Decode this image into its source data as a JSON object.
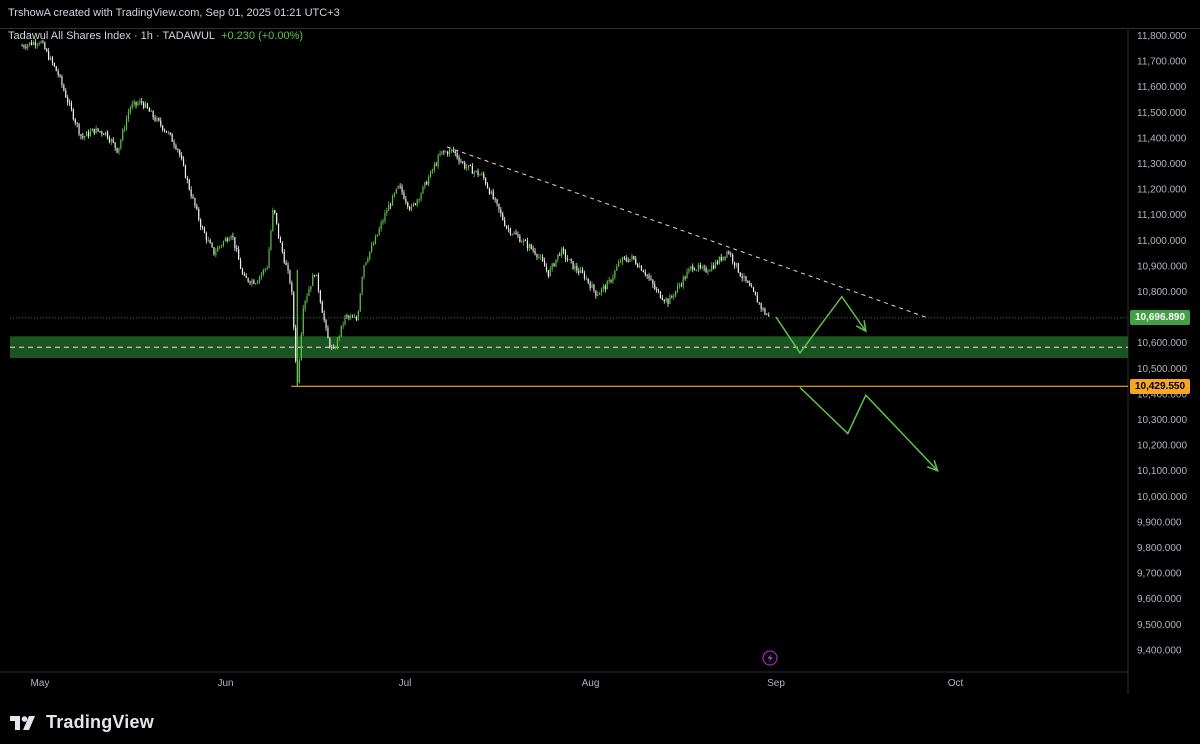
{
  "header": {
    "credit": "TrshowA created with TradingView.com, Sep 01, 2025 01:21 UTC+3"
  },
  "legend": {
    "symbol": "Tadawul All Shares Index · 1h · TADAWUL",
    "change": "+0.230 (+0.00%)",
    "change_color": "#5fc24a"
  },
  "footer": {
    "brand": "TradingView"
  },
  "colors": {
    "up": "#5fc24a",
    "down": "#f0f0f0",
    "zone": "#1e5c25",
    "support_line": "#f5a623",
    "trendline": "#d8d8d8",
    "last_price": "#43a047"
  },
  "chart_data": {
    "type": "candlestick",
    "timeframe": "1h",
    "symbol": "Tadawul All Shares Index",
    "exchange": "TADAWUL",
    "x_ticks": [
      "May",
      "Jun",
      "Jul",
      "Aug",
      "Sep",
      "Oct"
    ],
    "y_ticks": [
      "11,800.000",
      "11,700.000",
      "11,600.000",
      "11,500.000",
      "11,400.000",
      "11,300.000",
      "11,200.000",
      "11,100.000",
      "11,000.000",
      "10,900.000",
      "10,800.000",
      "10,700.000",
      "10,600.000",
      "10,500.000",
      "10,400.000",
      "10,300.000",
      "10,200.000",
      "10,100.000",
      "10,000.000",
      "9,900.000",
      "9,800.000",
      "9,700.000",
      "9,600.000",
      "9,500.000",
      "9,400.000"
    ],
    "y_tick_values": [
      11800,
      11700,
      11600,
      11500,
      11400,
      11300,
      11200,
      11100,
      11000,
      10900,
      10800,
      10700,
      10600,
      10500,
      10400,
      10300,
      10200,
      10100,
      10000,
      9900,
      9800,
      9700,
      9600,
      9500,
      9400
    ],
    "ylim": [
      9370,
      11840
    ],
    "price_path": [
      {
        "date": "2025-04-28",
        "close": 11760
      },
      {
        "date": "2025-05-01",
        "close": 11780
      },
      {
        "date": "2025-05-04",
        "close": 11650
      },
      {
        "date": "2025-05-06",
        "close": 11520
      },
      {
        "date": "2025-05-08",
        "close": 11400
      },
      {
        "date": "2025-05-10",
        "close": 11430
      },
      {
        "date": "2025-05-12",
        "close": 11420
      },
      {
        "date": "2025-05-14",
        "close": 11350
      },
      {
        "date": "2025-05-16",
        "close": 11520
      },
      {
        "date": "2025-05-18",
        "close": 11540
      },
      {
        "date": "2025-05-20",
        "close": 11480
      },
      {
        "date": "2025-05-22",
        "close": 11430
      },
      {
        "date": "2025-05-24",
        "close": 11360
      },
      {
        "date": "2025-05-26",
        "close": 11200
      },
      {
        "date": "2025-05-28",
        "close": 11050
      },
      {
        "date": "2025-05-30",
        "close": 10950
      },
      {
        "date": "2025-06-02",
        "close": 11030
      },
      {
        "date": "2025-06-04",
        "close": 10850
      },
      {
        "date": "2025-06-06",
        "close": 10840
      },
      {
        "date": "2025-06-08",
        "close": 10900
      },
      {
        "date": "2025-06-09",
        "close": 11130
      },
      {
        "date": "2025-06-10",
        "close": 11000
      },
      {
        "date": "2025-06-12",
        "close": 10820
      },
      {
        "date": "2025-06-13",
        "close": 10430
      },
      {
        "date": "2025-06-14",
        "close": 10750
      },
      {
        "date": "2025-06-16",
        "close": 10880
      },
      {
        "date": "2025-06-17",
        "close": 10750
      },
      {
        "date": "2025-06-18",
        "close": 10620
      },
      {
        "date": "2025-06-19",
        "close": 10560
      },
      {
        "date": "2025-06-21",
        "close": 10700
      },
      {
        "date": "2025-06-23",
        "close": 10690
      },
      {
        "date": "2025-06-24",
        "close": 10900
      },
      {
        "date": "2025-06-26",
        "close": 11000
      },
      {
        "date": "2025-06-28",
        "close": 11120
      },
      {
        "date": "2025-06-30",
        "close": 11210
      },
      {
        "date": "2025-07-02",
        "close": 11120
      },
      {
        "date": "2025-07-04",
        "close": 11200
      },
      {
        "date": "2025-07-07",
        "close": 11340
      },
      {
        "date": "2025-07-09",
        "close": 11350
      },
      {
        "date": "2025-07-11",
        "close": 11290
      },
      {
        "date": "2025-07-14",
        "close": 11250
      },
      {
        "date": "2025-07-16",
        "close": 11150
      },
      {
        "date": "2025-07-18",
        "close": 11050
      },
      {
        "date": "2025-07-21",
        "close": 10990
      },
      {
        "date": "2025-07-23",
        "close": 10950
      },
      {
        "date": "2025-07-25",
        "close": 10870
      },
      {
        "date": "2025-07-27",
        "close": 10960
      },
      {
        "date": "2025-07-29",
        "close": 10900
      },
      {
        "date": "2025-07-31",
        "close": 10860
      },
      {
        "date": "2025-08-02",
        "close": 10790
      },
      {
        "date": "2025-08-04",
        "close": 10830
      },
      {
        "date": "2025-08-06",
        "close": 10920
      },
      {
        "date": "2025-08-08",
        "close": 10930
      },
      {
        "date": "2025-08-10",
        "close": 10880
      },
      {
        "date": "2025-08-12",
        "close": 10800
      },
      {
        "date": "2025-08-14",
        "close": 10760
      },
      {
        "date": "2025-08-16",
        "close": 10830
      },
      {
        "date": "2025-08-18",
        "close": 10900
      },
      {
        "date": "2025-08-20",
        "close": 10880
      },
      {
        "date": "2025-08-22",
        "close": 10910
      },
      {
        "date": "2025-08-24",
        "close": 10960
      },
      {
        "date": "2025-08-26",
        "close": 10870
      },
      {
        "date": "2025-08-28",
        "close": 10800
      },
      {
        "date": "2025-08-30",
        "close": 10720
      },
      {
        "date": "2025-08-31",
        "close": 10696.89
      }
    ],
    "last_price": "10,696.890",
    "support_price": "10,429.550",
    "support_start_date": "2025-06-12",
    "demand_zone": {
      "low": 10540,
      "high": 10625,
      "mid": 10582
    },
    "trendline": {
      "from": {
        "date": "2025-07-08",
        "price": 11365
      },
      "to": {
        "date": "2025-09-26",
        "price": 10700
      }
    },
    "projection_up": [
      {
        "date": "2025-09-01",
        "price": 10700
      },
      {
        "date": "2025-09-05",
        "price": 10560
      },
      {
        "date": "2025-09-12",
        "price": 10780
      },
      {
        "date": "2025-09-16",
        "price": 10645
      }
    ],
    "projection_down": [
      {
        "date": "2025-09-05",
        "price": 10425
      },
      {
        "date": "2025-09-13",
        "price": 10245
      },
      {
        "date": "2025-09-16",
        "price": 10395
      },
      {
        "date": "2025-09-28",
        "price": 10100
      }
    ]
  }
}
